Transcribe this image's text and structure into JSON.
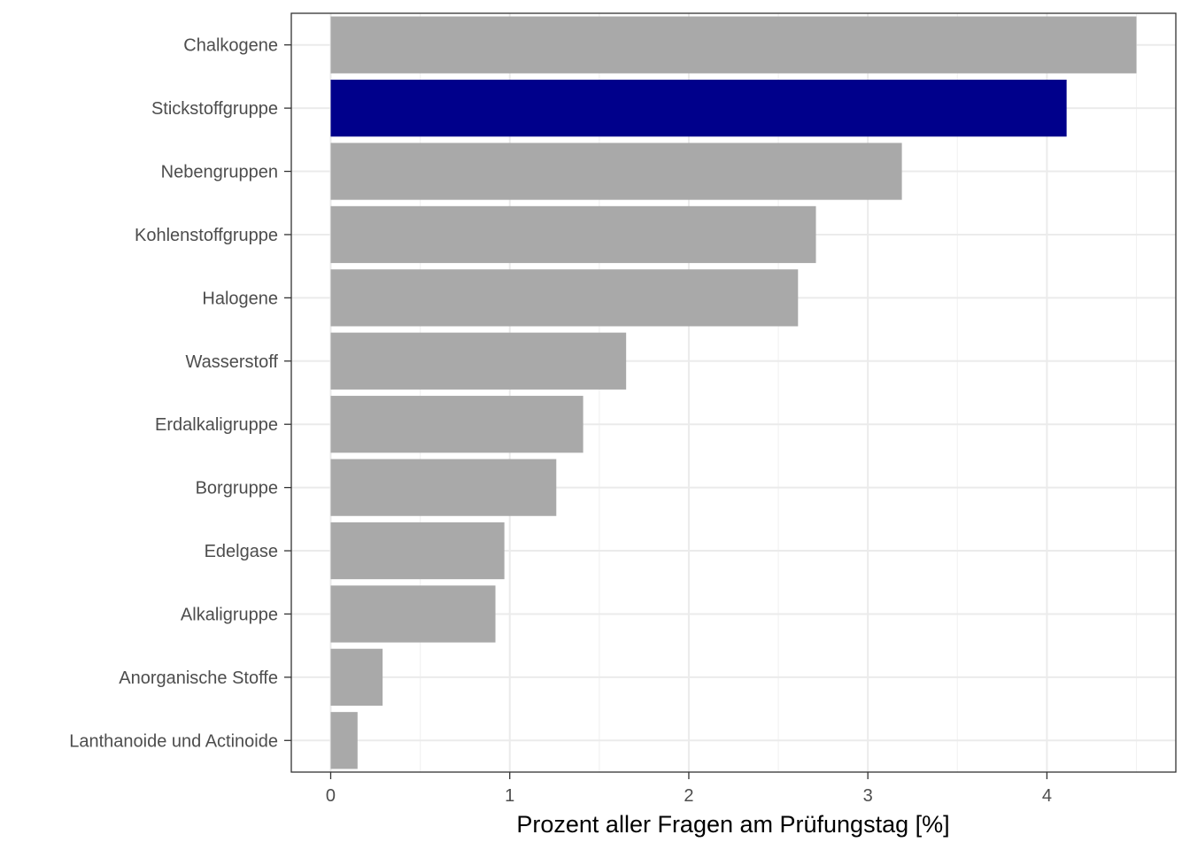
{
  "chart_data": {
    "type": "bar",
    "orientation": "horizontal",
    "categories": [
      "Chalkogene",
      "Stickstoffgruppe",
      "Nebengruppen",
      "Kohlenstoffgruppe",
      "Halogene",
      "Wasserstoff",
      "Erdalkaligruppe",
      "Borgruppe",
      "Edelgase",
      "Alkaligruppe",
      "Anorganische Stoffe",
      "Lanthanoide und Actinoide"
    ],
    "values": [
      4.5,
      4.11,
      3.19,
      2.71,
      2.61,
      1.65,
      1.41,
      1.26,
      0.97,
      0.92,
      0.29,
      0.15
    ],
    "highlight_category": "Stickstoffgruppe",
    "colors": {
      "default": "#a9a9a9",
      "highlight": "#00008b"
    },
    "title": "",
    "xlabel": "Prozent aller Fragen am Prüfungstag [%]",
    "ylabel": "",
    "xlim": [
      -0.22,
      4.72
    ],
    "xticks": [
      0,
      1,
      2,
      3,
      4
    ],
    "grid": true,
    "legend": "none"
  }
}
